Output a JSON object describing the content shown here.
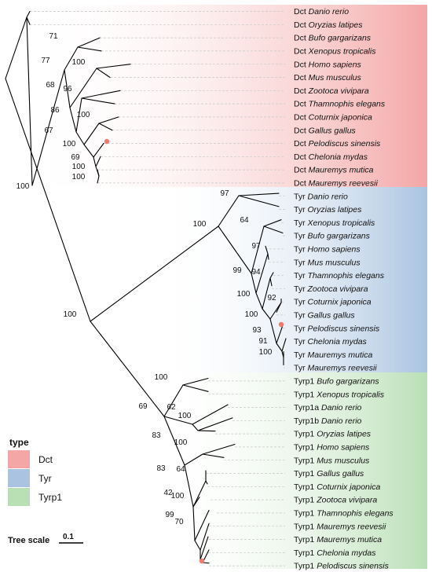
{
  "colors": {
    "Dct": "#f4a6a6",
    "Tyr": "#a9c3e0",
    "Tyrp1": "#b9dfb5",
    "node_marker": "#f07a6e"
  },
  "legend": {
    "title": "type",
    "items": [
      {
        "key": "Dct",
        "label": "Dct"
      },
      {
        "key": "Tyr",
        "label": "Tyr"
      },
      {
        "key": "Tyrp1",
        "label": "Tyrp1"
      }
    ]
  },
  "scale": {
    "title": "Tree scale",
    "value": "0.1"
  },
  "clades": [
    {
      "key": "Dct",
      "tips": [
        {
          "gene": "Dct",
          "species": "Danio rerio"
        },
        {
          "gene": "Dct",
          "species": "Oryzias latipes"
        },
        {
          "gene": "Dct",
          "species": "Bufo gargarizans"
        },
        {
          "gene": "Dct",
          "species": "Xenopus tropicalis"
        },
        {
          "gene": "Dct",
          "species": "Homo sapiens"
        },
        {
          "gene": "Dct",
          "species": "Mus musculus"
        },
        {
          "gene": "Dct",
          "species": "Zootoca vivipara"
        },
        {
          "gene": "Dct",
          "species": "Thamnophis elegans"
        },
        {
          "gene": "Dct",
          "species": "Coturnix japonica"
        },
        {
          "gene": "Dct",
          "species": "Gallus gallus"
        },
        {
          "gene": "Dct",
          "species": "Pelodiscus sinensis"
        },
        {
          "gene": "Dct",
          "species": "Chelonia mydas"
        },
        {
          "gene": "Dct",
          "species": "Mauremys mutica"
        },
        {
          "gene": "Dct",
          "species": "Mauremys reevesii"
        }
      ]
    },
    {
      "key": "Tyr",
      "tips": [
        {
          "gene": "Tyr",
          "species": "Danio rerio"
        },
        {
          "gene": "Tyr",
          "species": "Oryzias latipes"
        },
        {
          "gene": "Tyr",
          "species": "Xenopus tropicalis"
        },
        {
          "gene": "Tyr",
          "species": "Bufo gargarizans"
        },
        {
          "gene": "Tyr",
          "species": "Homo sapiens"
        },
        {
          "gene": "Tyr",
          "species": "Mus musculus"
        },
        {
          "gene": "Tyr",
          "species": "Thamnophis elegans"
        },
        {
          "gene": "Tyr",
          "species": "Zootoca vivipara"
        },
        {
          "gene": "Tyr",
          "species": "Coturnix japonica"
        },
        {
          "gene": "Tyr",
          "species": "Gallus gallus"
        },
        {
          "gene": "Tyr",
          "species": "Pelodiscus sinensis"
        },
        {
          "gene": "Tyr",
          "species": "Chelonia mydas"
        },
        {
          "gene": "Tyr",
          "species": "Mauremys mutica"
        },
        {
          "gene": "Tyr",
          "species": "Mauremys reevesii"
        }
      ]
    },
    {
      "key": "Tyrp1",
      "tips": [
        {
          "gene": "Tyrp1",
          "species": "Bufo gargarizans"
        },
        {
          "gene": "Tyrp1",
          "species": "Xenopus tropicalis"
        },
        {
          "gene": "Tyrp1a",
          "species": "Danio rerio"
        },
        {
          "gene": "Tyrp1b",
          "species": "Danio rerio"
        },
        {
          "gene": "Tyrp1",
          "species": "Oryzias latipes"
        },
        {
          "gene": "Tyrp1",
          "species": "Homo sapiens"
        },
        {
          "gene": "Tyrp1",
          "species": "Mus musculus"
        },
        {
          "gene": "Tyrp1",
          "species": "Gallus gallus"
        },
        {
          "gene": "Tyrp1",
          "species": "Coturnix japonica"
        },
        {
          "gene": "Tyrp1",
          "species": "Zootoca vivipara"
        },
        {
          "gene": "Tyrp1",
          "species": "Thamnophis elegans"
        },
        {
          "gene": "Tyrp1",
          "species": "Mauremys reevesii"
        },
        {
          "gene": "Tyrp1",
          "species": "Mauremys mutica"
        },
        {
          "gene": "Tyrp1",
          "species": "Chelonia mydas"
        },
        {
          "gene": "Tyrp1",
          "species": "Pelodiscus sinensis"
        }
      ]
    }
  ],
  "support_values": [
    "71",
    "77",
    "100",
    "68",
    "96",
    "86",
    "100",
    "67",
    "100",
    "69",
    "100",
    "100",
    "100",
    "97",
    "64",
    "100",
    "97",
    "99",
    "94",
    "100",
    "92",
    "100",
    "93",
    "91",
    "100",
    "100",
    "100",
    "69",
    "62",
    "100",
    "83",
    "100",
    "83",
    "64",
    "42",
    "100",
    "99",
    "70"
  ]
}
